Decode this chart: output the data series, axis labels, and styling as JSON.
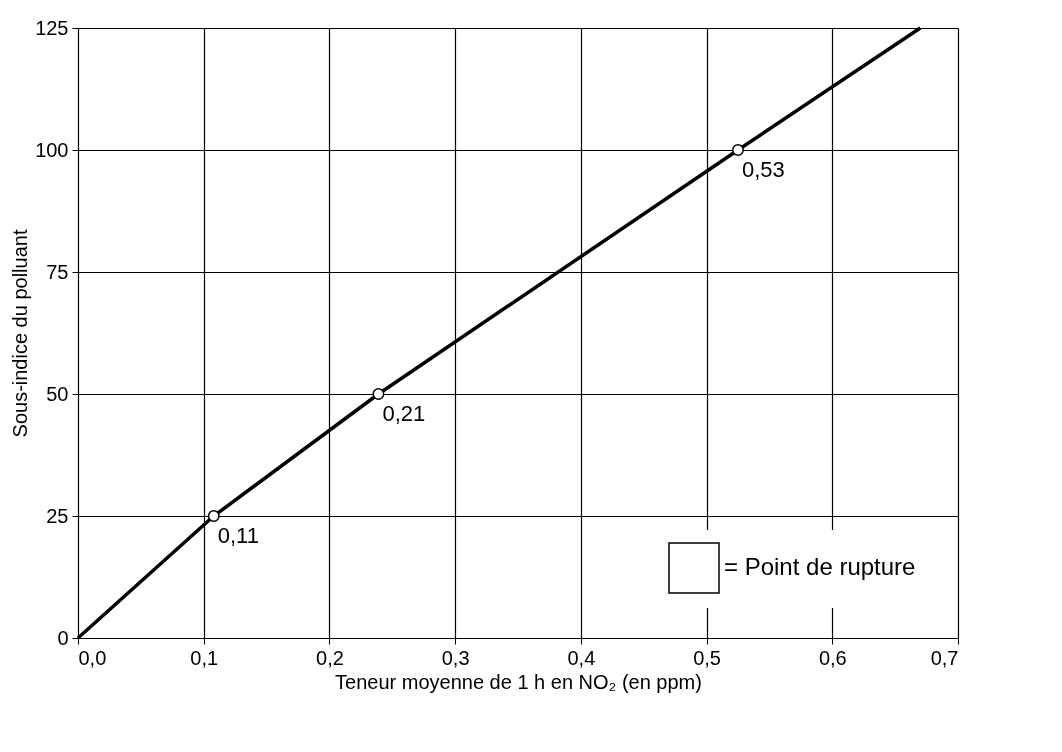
{
  "chart_data": {
    "type": "line",
    "xlabel": "Teneur moyenne de 1 h en NO₂ (en ppm)",
    "ylabel": "Sous-indice du polluant",
    "series": [
      {
        "color": "#000000",
        "x": [
          0,
          0.108,
          0.239,
          0.525,
          0.67
        ],
        "values": [
          0,
          25,
          50,
          100,
          125
        ],
        "line_style": "solid"
      },
      {
        "type": "scatter",
        "name": "= Point de rupture",
        "color": "#ffffff",
        "x": [
          0.108,
          0.239,
          0.525
        ],
        "values": [
          25,
          50,
          100
        ],
        "marker": "circle"
      }
    ],
    "annotations": [
      {
        "text": "0,11",
        "x": 0.108,
        "y": 25
      },
      {
        "text": "0,21",
        "x": 0.239,
        "y": 50
      },
      {
        "text": "0,53",
        "x": 0.525,
        "y": 100
      }
    ],
    "xlim": [
      0,
      0.7
    ],
    "xticks": [
      {
        "value": 0,
        "label": "0,0"
      },
      {
        "value": 0.1,
        "label": "0,1"
      },
      {
        "value": 0.2,
        "label": "0,2"
      },
      {
        "value": 0.3,
        "label": "0,3"
      },
      {
        "value": 0.4,
        "label": "0,4"
      },
      {
        "value": 0.5,
        "label": "0,5"
      },
      {
        "value": 0.6,
        "label": "0,6"
      },
      {
        "value": 0.7,
        "label": "0,7"
      }
    ],
    "ylim": [
      0,
      125
    ],
    "yticks": [
      0,
      25,
      50,
      75,
      100,
      125
    ],
    "grid": true,
    "legend": "bottom right"
  }
}
